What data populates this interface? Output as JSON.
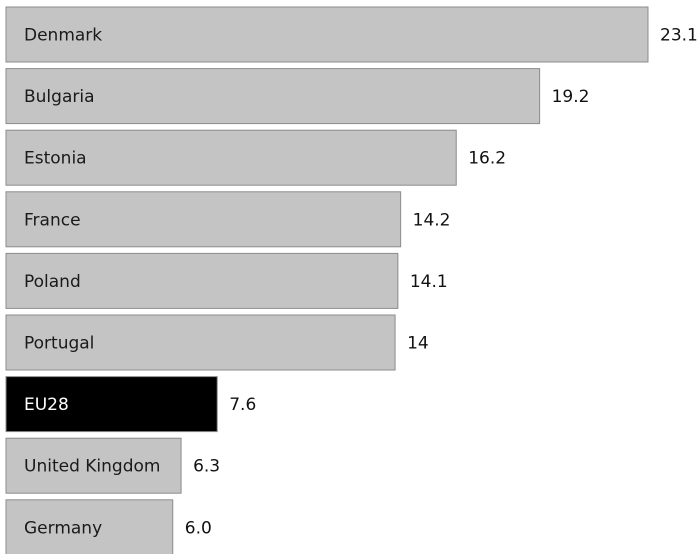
{
  "chart_data": {
    "type": "bar",
    "orientation": "horizontal",
    "categories": [
      "Denmark",
      "Bulgaria",
      "Estonia",
      "France",
      "Poland",
      "Portugal",
      "EU28",
      "United Kingdom",
      "Germany"
    ],
    "values": [
      23.1,
      19.2,
      16.2,
      14.2,
      14.1,
      14,
      7.6,
      6.3,
      6.0
    ],
    "value_labels": [
      "23.1",
      "19.2",
      "16.2",
      "14.2",
      "14.1",
      "14",
      "7.6",
      "6.3",
      "6.0"
    ],
    "highlight_category": "EU28",
    "colors": {
      "bar": "#c4c4c4",
      "highlight_bar": "#000000",
      "label_text": "#1a1a1a",
      "highlight_text": "#ffffff"
    },
    "xlim": [
      0,
      23.1
    ],
    "grid": false,
    "legend": false
  }
}
